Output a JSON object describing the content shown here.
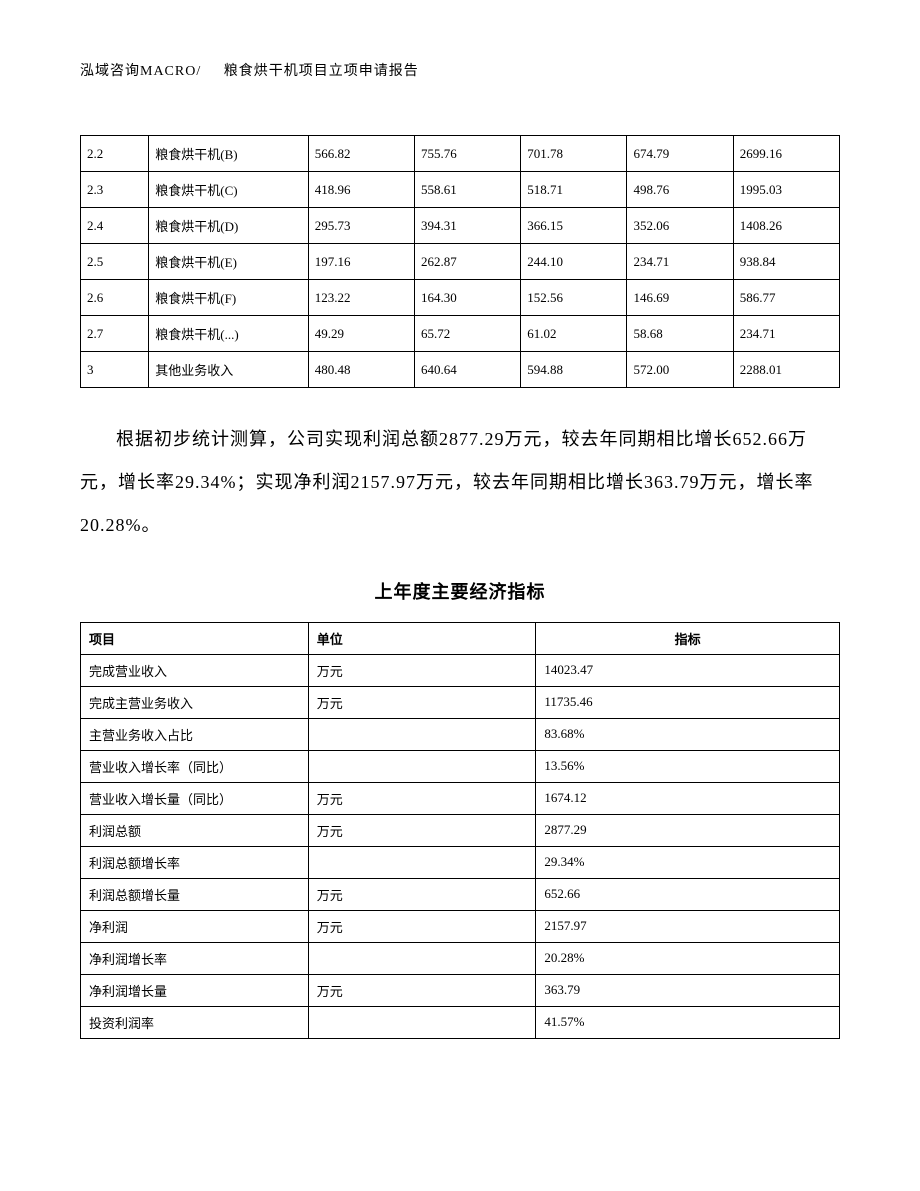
{
  "header": {
    "company": "泓域咨询MACRO/",
    "title": "粮食烘干机项目立项申请报告"
  },
  "table1": {
    "rows": [
      [
        "2.2",
        "粮食烘干机(B)",
        "566.82",
        "755.76",
        "701.78",
        "674.79",
        "2699.16"
      ],
      [
        "2.3",
        "粮食烘干机(C)",
        "418.96",
        "558.61",
        "518.71",
        "498.76",
        "1995.03"
      ],
      [
        "2.4",
        "粮食烘干机(D)",
        "295.73",
        "394.31",
        "366.15",
        "352.06",
        "1408.26"
      ],
      [
        "2.5",
        "粮食烘干机(E)",
        "197.16",
        "262.87",
        "244.10",
        "234.71",
        "938.84"
      ],
      [
        "2.6",
        "粮食烘干机(F)",
        "123.22",
        "164.30",
        "152.56",
        "146.69",
        "586.77"
      ],
      [
        "2.7",
        "粮食烘干机(...)",
        "49.29",
        "65.72",
        "61.02",
        "58.68",
        "234.71"
      ],
      [
        "3",
        "其他业务收入",
        "480.48",
        "640.64",
        "594.88",
        "572.00",
        "2288.01"
      ]
    ]
  },
  "paragraph": "根据初步统计测算，公司实现利润总额2877.29万元，较去年同期相比增长652.66万元，增长率29.34%；实现净利润2157.97万元，较去年同期相比增长363.79万元，增长率20.28%。",
  "heading2": "上年度主要经济指标",
  "table2": {
    "headers": [
      "项目",
      "单位",
      "指标"
    ],
    "rows": [
      [
        "完成营业收入",
        "万元",
        "14023.47"
      ],
      [
        "完成主营业务收入",
        "万元",
        "11735.46"
      ],
      [
        "主营业务收入占比",
        "",
        "83.68%"
      ],
      [
        "营业收入增长率（同比）",
        "",
        "13.56%"
      ],
      [
        "营业收入增长量（同比）",
        "万元",
        "1674.12"
      ],
      [
        "利润总额",
        "万元",
        "2877.29"
      ],
      [
        "利润总额增长率",
        "",
        "29.34%"
      ],
      [
        "利润总额增长量",
        "万元",
        "652.66"
      ],
      [
        "净利润",
        "万元",
        "2157.97"
      ],
      [
        "净利润增长率",
        "",
        "20.28%"
      ],
      [
        "净利润增长量",
        "万元",
        "363.79"
      ],
      [
        "投资利润率",
        "",
        "41.57%"
      ]
    ]
  }
}
